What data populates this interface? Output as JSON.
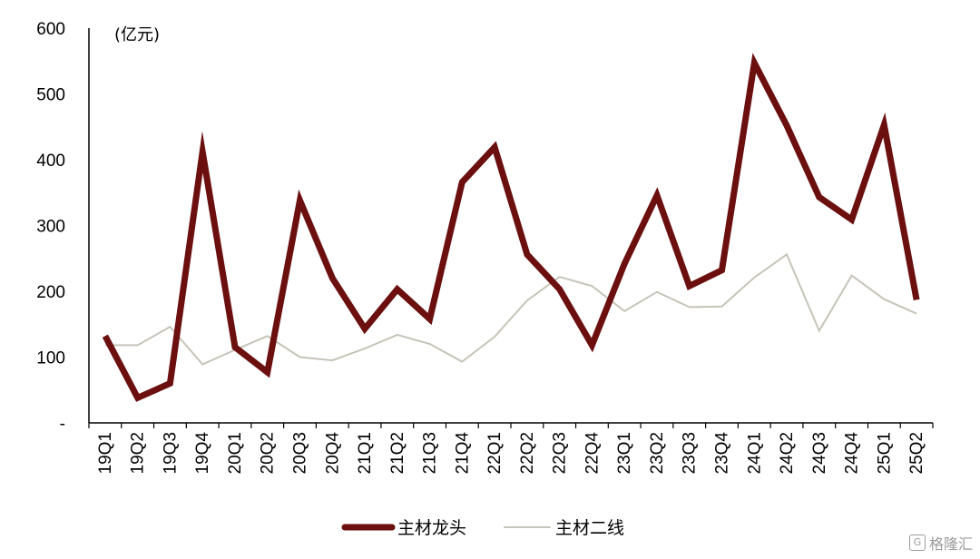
{
  "chart_data": {
    "type": "line",
    "unit_label": "(亿元)",
    "categories": [
      "19Q1",
      "19Q2",
      "19Q3",
      "19Q4",
      "20Q1",
      "20Q2",
      "20Q3",
      "20Q4",
      "21Q1",
      "21Q2",
      "21Q3",
      "21Q4",
      "22Q1",
      "22Q2",
      "22Q3",
      "22Q4",
      "23Q1",
      "23Q2",
      "23Q3",
      "23Q4",
      "24Q1",
      "24Q2",
      "24Q3",
      "24Q4",
      "25Q1",
      "25Q2"
    ],
    "series": [
      {
        "name": "主材龙头",
        "color": "#6b0f0f",
        "values": [
          132,
          38,
          60,
          412,
          115,
          77,
          338,
          220,
          143,
          203,
          158,
          366,
          419,
          256,
          203,
          118,
          242,
          346,
          208,
          232,
          547,
          452,
          343,
          309,
          453,
          187
        ]
      },
      {
        "name": "主材二线",
        "color": "#c6c4b8",
        "values": [
          118,
          118,
          146,
          89,
          111,
          132,
          100,
          95,
          113,
          134,
          120,
          93,
          131,
          186,
          222,
          208,
          170,
          199,
          176,
          177,
          221,
          256,
          140,
          224,
          188,
          166
        ]
      }
    ],
    "yticks": [
      "-",
      "100",
      "200",
      "300",
      "400",
      "500",
      "600"
    ],
    "ylim": [
      0,
      600
    ],
    "grid": false,
    "legend_position": "bottom"
  },
  "watermark": {
    "icon_text": "G",
    "text": "格隆汇"
  }
}
